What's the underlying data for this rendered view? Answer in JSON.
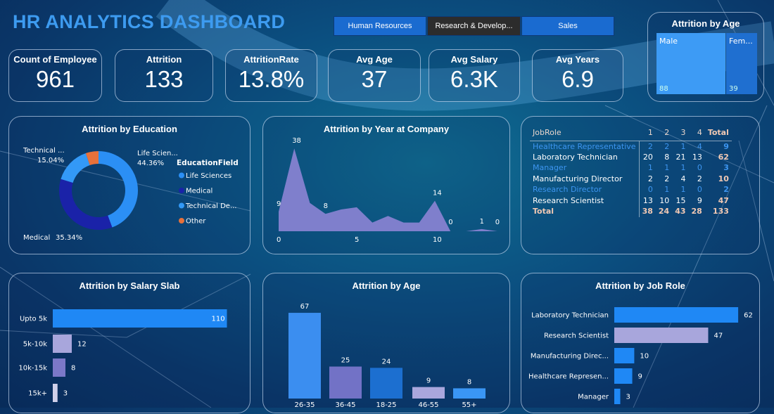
{
  "header": {
    "title": "HR ANALYTICS DASHBOARD"
  },
  "slicers": [
    {
      "label": "Human Resources",
      "selected": false
    },
    {
      "label": "Research & Develop...",
      "selected": true
    },
    {
      "label": "Sales",
      "selected": false
    }
  ],
  "kpis": [
    {
      "label": "Count of Employee",
      "value": "961"
    },
    {
      "label": "Attrition",
      "value": "133"
    },
    {
      "label": "AttritionRate",
      "value": "13.8%"
    },
    {
      "label": "Avg Age",
      "value": "37"
    },
    {
      "label": "Avg Salary",
      "value": "6.3K"
    },
    {
      "label": "Avg Years",
      "value": "6.9"
    }
  ],
  "gender_treemap": {
    "title": "Attrition by Age",
    "items": [
      {
        "label": "Male",
        "value": "88"
      },
      {
        "label": "Fem...",
        "value": "39"
      }
    ]
  },
  "colors": {
    "blue": "#1f88f5",
    "dark_blue": "#1a22a8",
    "lavender": "#a8a6dc",
    "purple": "#7b78c8",
    "orange": "#e8713a",
    "area": "#7f7fcc"
  },
  "chart_data": [
    {
      "type": "pie",
      "title": "Attrition by Education",
      "legend_title": "EducationField",
      "legend": [
        "Life Sciences",
        "Medical",
        "Technical De...",
        "Other"
      ],
      "slices": [
        {
          "name": "Life Sciences",
          "value": 44.36,
          "label": "Life Scien...",
          "pct": "44.36%",
          "color": "#2b8ff5"
        },
        {
          "name": "Medical",
          "value": 35.34,
          "label": "Medical",
          "pct": "35.34%",
          "color": "#1a22a8"
        },
        {
          "name": "Technical De...",
          "value": 15.04,
          "label": "Technical ...",
          "pct": "15.04%",
          "color": "#3399f7"
        },
        {
          "name": "Other",
          "value": 5.26,
          "color": "#e8713a"
        }
      ]
    },
    {
      "type": "area",
      "title": "Attrition by Year at Company",
      "x": [
        0,
        1,
        2,
        3,
        4,
        5,
        6,
        7,
        8,
        9,
        10,
        11,
        12,
        13,
        14
      ],
      "values": [
        9,
        38,
        13,
        8,
        10,
        11,
        4,
        7,
        4,
        4,
        14,
        0,
        0,
        1,
        0
      ],
      "xticks": [
        "0",
        "5",
        "10"
      ],
      "data_labels": [
        {
          "x": 0,
          "text": "9"
        },
        {
          "x": 1,
          "text": "38"
        },
        {
          "x": 3,
          "text": "8"
        },
        {
          "x": 10,
          "text": "14"
        },
        {
          "x": 11,
          "text": "0"
        },
        {
          "x": 13,
          "text": "1"
        },
        {
          "x": 14,
          "text": "0"
        }
      ]
    },
    {
      "type": "table",
      "headers": [
        "JobRole",
        "1",
        "2",
        "3",
        "4",
        "Total"
      ],
      "rows": [
        [
          "Healthcare Representative",
          "2",
          "2",
          "1",
          "4",
          "9"
        ],
        [
          "Laboratory Technician",
          "20",
          "8",
          "21",
          "13",
          "62"
        ],
        [
          "Manager",
          "1",
          "1",
          "1",
          "0",
          "3"
        ],
        [
          "Manufacturing Director",
          "2",
          "2",
          "4",
          "2",
          "10"
        ],
        [
          "Research Director",
          "0",
          "1",
          "1",
          "0",
          "2"
        ],
        [
          "Research Scientist",
          "13",
          "10",
          "15",
          "9",
          "47"
        ]
      ],
      "total": [
        "Total",
        "38",
        "24",
        "43",
        "28",
        "133"
      ]
    },
    {
      "type": "bar",
      "orientation": "horizontal",
      "title": "Attrition by Salary Slab",
      "categories": [
        "Upto 5k",
        "5k-10k",
        "10k-15k",
        "15k+"
      ],
      "values": [
        110,
        12,
        8,
        3
      ],
      "colors": [
        "#1f88f5",
        "#a8a6dc",
        "#7b78c8",
        "#d0d0ea"
      ]
    },
    {
      "type": "bar",
      "title": "Attrition by Age",
      "categories": [
        "26-35",
        "36-45",
        "18-25",
        "46-55",
        "55+"
      ],
      "values": [
        67,
        25,
        24,
        9,
        8
      ],
      "colors": [
        "#3b8ef0",
        "#7272c6",
        "#1c6fd0",
        "#a9a7dd",
        "#3a96f5"
      ]
    },
    {
      "type": "bar",
      "orientation": "horizontal",
      "title": "Attrition by Job Role",
      "categories": [
        "Laboratory Technician",
        "Research Scientist",
        "Manufacturing Direc...",
        "Healthcare Represen...",
        "Manager"
      ],
      "values": [
        62,
        47,
        10,
        9,
        3
      ],
      "colors": [
        "#1f88f5",
        "#a8a6dc",
        "#1f88f5",
        "#1f88f5",
        "#1f88f5"
      ]
    }
  ]
}
